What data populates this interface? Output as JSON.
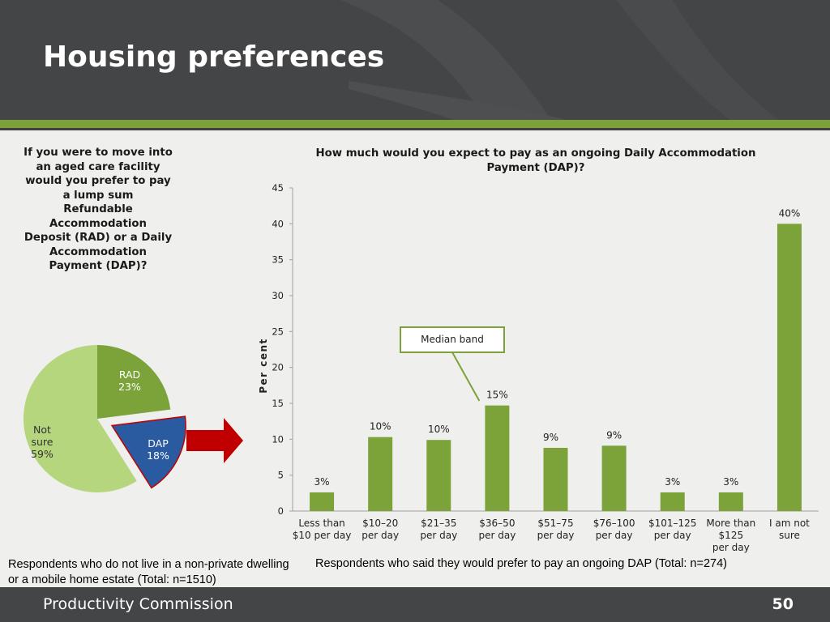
{
  "slide": {
    "title": "Housing preferences",
    "footer_org": "Productivity Commission",
    "page_number": "50",
    "colors": {
      "header": "#444546",
      "accent_green": "#7ba33a",
      "dap_blue": "#2a5aa0",
      "arrow_red": "#c00000"
    }
  },
  "chart_data": [
    {
      "type": "pie",
      "title": "If you were to move into an aged care facility would you prefer to pay a lump sum Refundable Accommodation Deposit (RAD) or a Daily Accommodation Payment (DAP)?",
      "title_lines": [
        "If you were to move into",
        "an aged care facility",
        "would you prefer to pay",
        "a lump sum",
        "Refundable",
        "Accommodation",
        "Deposit (RAD) or a Daily",
        "Accommodation",
        "Payment (DAP)?"
      ],
      "slices": [
        {
          "label": "RAD",
          "value": 23,
          "value_label": "23%",
          "color": "#7ba33a"
        },
        {
          "label": "DAP",
          "value": 18,
          "value_label": "18%",
          "color": "#2a5aa0",
          "exploded": true
        },
        {
          "label": "Not sure",
          "label_lines": [
            "Not",
            "sure"
          ],
          "value": 59,
          "value_label": "59%",
          "color": "#b5d67c"
        }
      ],
      "note": "Respondents who do not live in a non-private dwelling or a mobile home estate (Total: n=1510)"
    },
    {
      "type": "bar",
      "title": "How much would you expect to pay as an ongoing Daily Accommodation Payment (DAP)?",
      "title_lines": [
        "How much would you expect to pay as an ongoing Daily Accommodation",
        "Payment (DAP)?"
      ],
      "ylabel": "Per cent",
      "xlabel": "",
      "ylim": [
        0,
        45
      ],
      "yticks": [
        0,
        5,
        10,
        15,
        20,
        25,
        30,
        35,
        40,
        45
      ],
      "grid": false,
      "categories": [
        [
          "Less than",
          "$10 per day"
        ],
        [
          "$10–20",
          "per day"
        ],
        [
          "$21–35",
          "per day"
        ],
        [
          "$36–50",
          "per day"
        ],
        [
          "$51–75",
          "per day"
        ],
        [
          "$76–100",
          "per day"
        ],
        [
          "$101–125",
          "per day"
        ],
        [
          "More than",
          "$125",
          "per day"
        ],
        [
          "I am not",
          "sure"
        ]
      ],
      "values": [
        2.6,
        10.3,
        9.9,
        14.7,
        8.8,
        9.1,
        2.6,
        2.6,
        40.0
      ],
      "data_labels": [
        "3%",
        "10%",
        "10%",
        "15%",
        "9%",
        "9%",
        "3%",
        "3%",
        "40%"
      ],
      "bar_color": "#7ba33a",
      "annotation": {
        "text": "Median band",
        "points_to_category": 3
      },
      "note": "Respondents who said they would prefer to pay an ongoing DAP (Total: n=274)"
    }
  ]
}
